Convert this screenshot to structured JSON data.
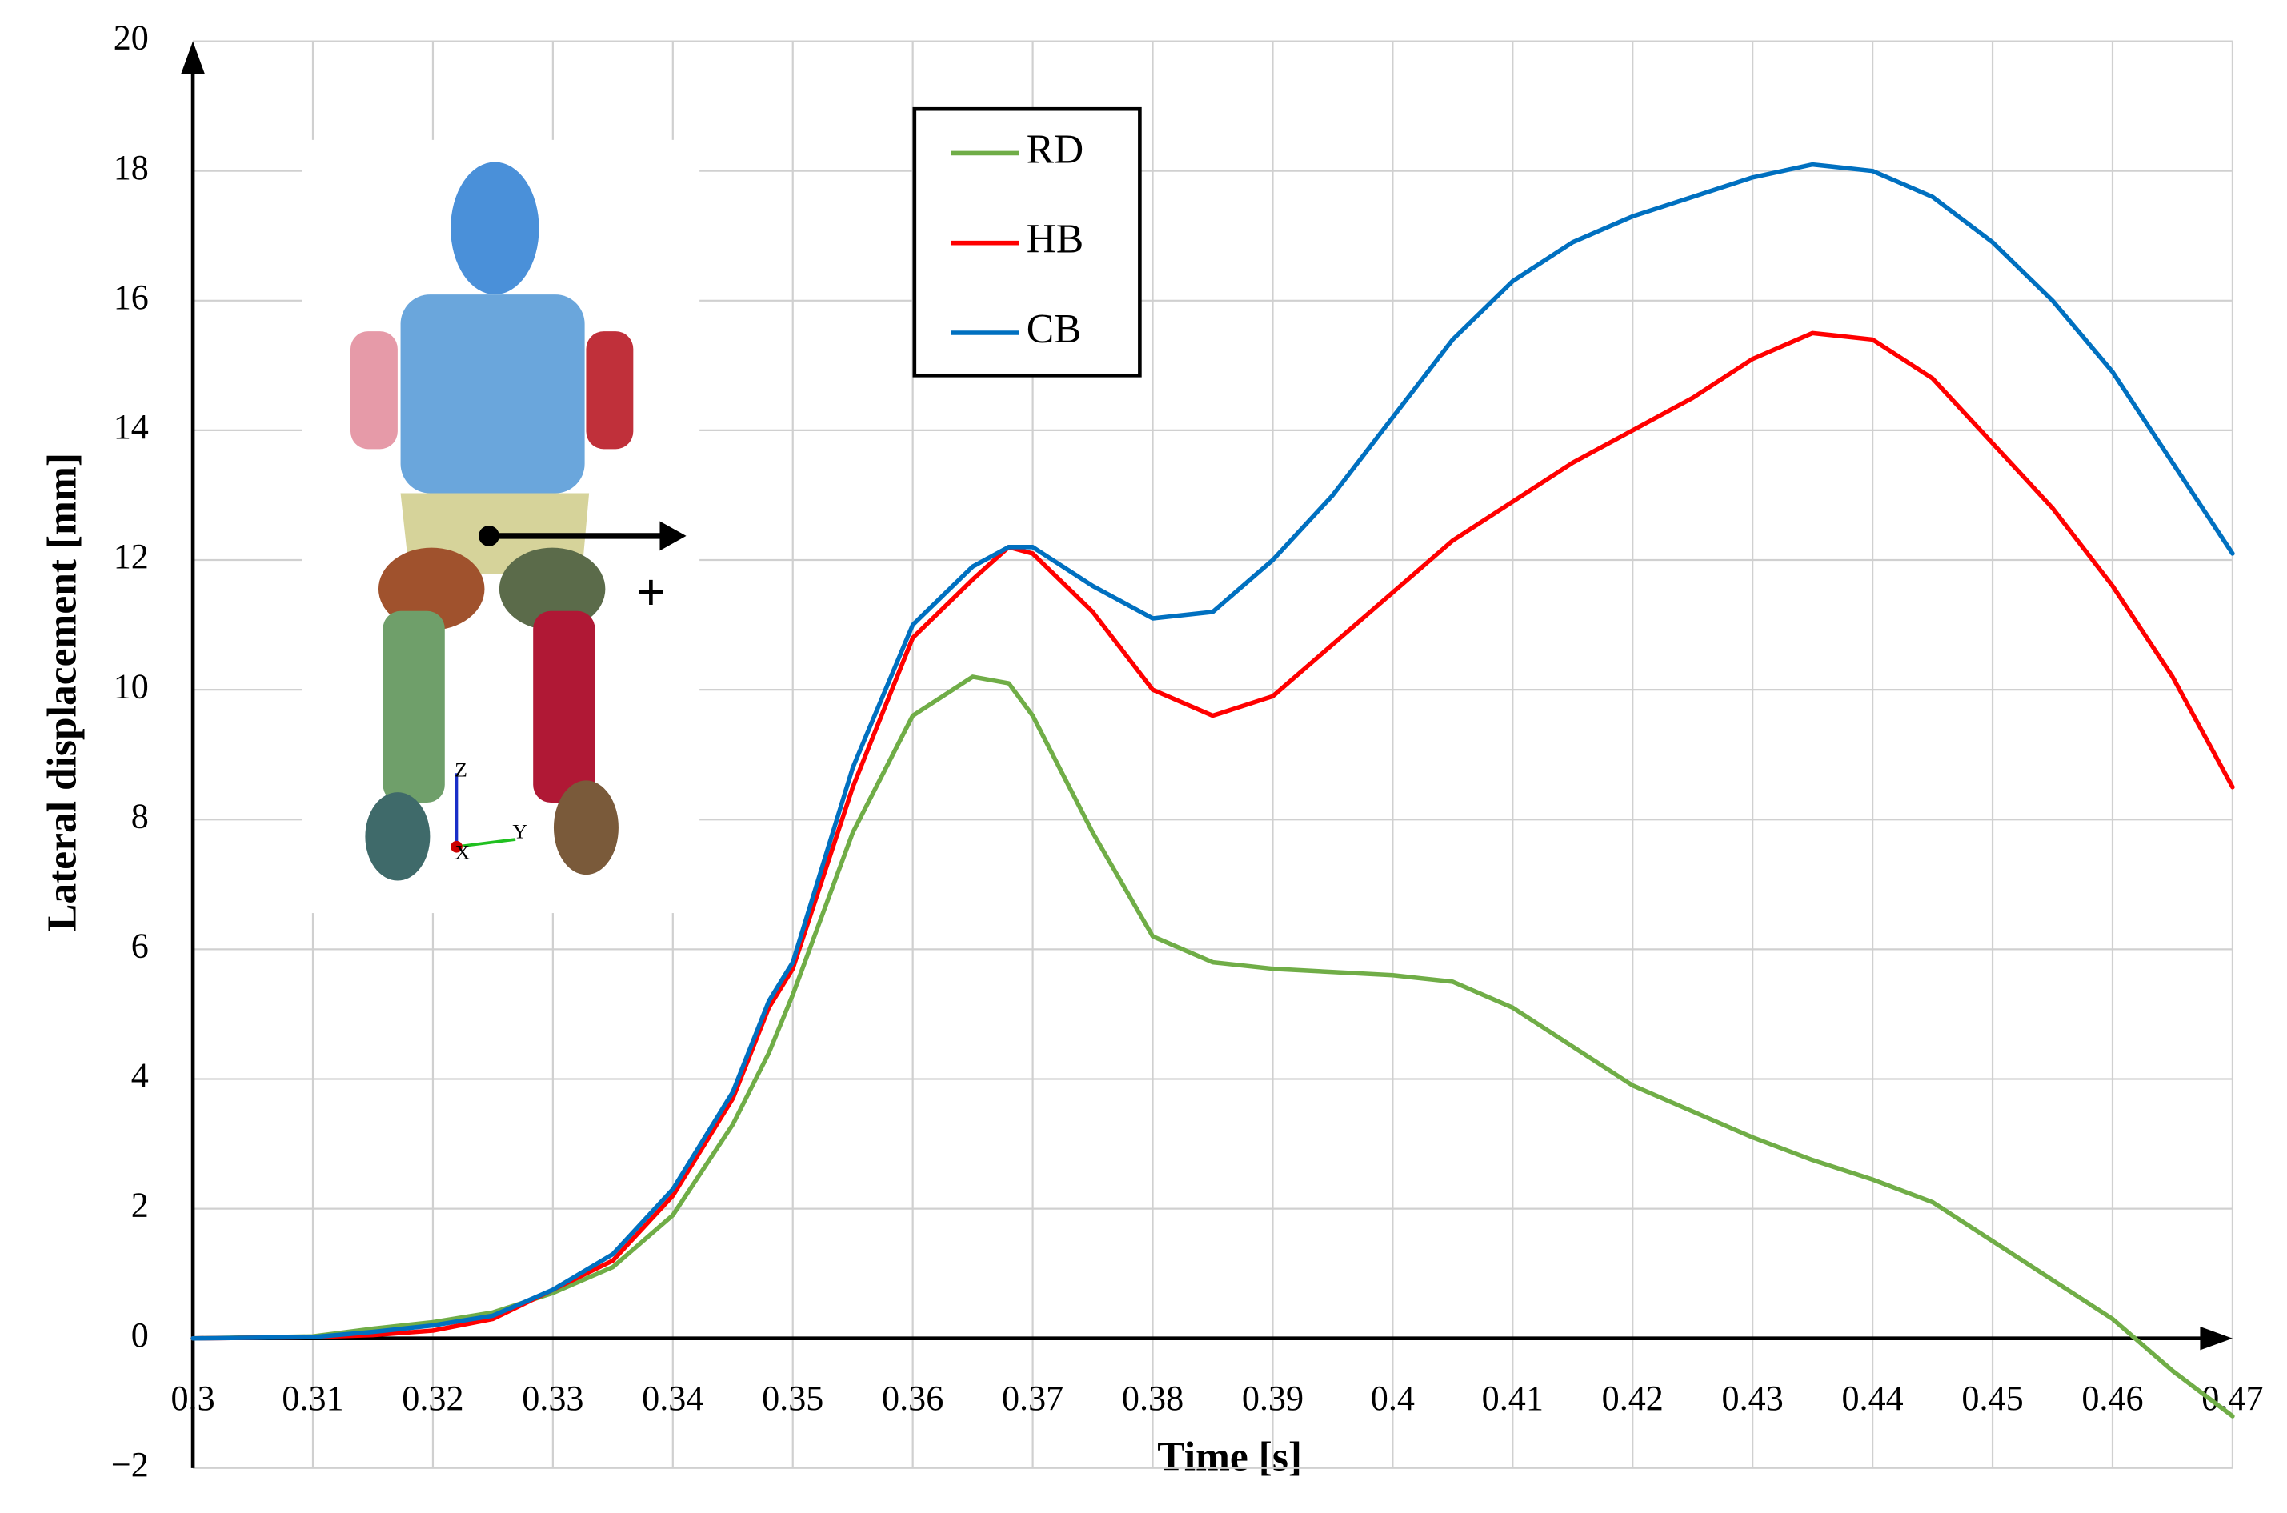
{
  "chart_data": {
    "type": "line",
    "x_label": "Time [s]",
    "y_label": "Lateral displacement [mm]",
    "x": [
      0.3,
      0.31,
      0.315,
      0.32,
      0.325,
      0.33,
      0.335,
      0.34,
      0.345,
      0.348,
      0.35,
      0.355,
      0.36,
      0.365,
      0.368,
      0.37,
      0.375,
      0.38,
      0.385,
      0.39,
      0.395,
      0.4,
      0.405,
      0.41,
      0.415,
      0.42,
      0.425,
      0.43,
      0.435,
      0.44,
      0.445,
      0.45,
      0.455,
      0.46,
      0.465,
      0.47
    ],
    "series": [
      {
        "name": "RD",
        "color": "#70ad47",
        "values": [
          0,
          0.03,
          0.15,
          0.25,
          0.4,
          0.7,
          1.1,
          1.9,
          3.3,
          4.4,
          5.3,
          7.8,
          9.6,
          10.2,
          10.1,
          9.6,
          7.8,
          6.2,
          5.8,
          5.7,
          5.65,
          5.6,
          5.5,
          5.1,
          4.5,
          3.9,
          3.5,
          3.1,
          2.75,
          2.45,
          2.1,
          1.5,
          0.9,
          0.3,
          -0.5,
          -1.2
        ]
      },
      {
        "name": "HB",
        "color": "#ff0000",
        "values": [
          0,
          0.02,
          0.05,
          0.12,
          0.3,
          0.75,
          1.2,
          2.2,
          3.7,
          5.1,
          5.7,
          8.5,
          10.8,
          11.7,
          12.2,
          12.1,
          11.2,
          10.0,
          9.6,
          9.9,
          10.7,
          11.5,
          12.3,
          12.9,
          13.5,
          14.0,
          14.5,
          15.1,
          15.5,
          15.4,
          14.8,
          13.8,
          12.8,
          11.6,
          10.2,
          8.5
        ]
      },
      {
        "name": "CB",
        "color": "#0070c0",
        "values": [
          0,
          0.02,
          0.1,
          0.2,
          0.35,
          0.75,
          1.3,
          2.3,
          3.8,
          5.2,
          5.8,
          8.8,
          11.0,
          11.9,
          12.2,
          12.2,
          11.6,
          11.1,
          11.2,
          12.0,
          13.0,
          14.2,
          15.4,
          16.3,
          16.9,
          17.3,
          17.6,
          17.9,
          18.1,
          18.0,
          17.6,
          16.9,
          16.0,
          14.9,
          13.5,
          12.1
        ]
      }
    ],
    "xlim": [
      0.3,
      0.47
    ],
    "xticks": [
      0.3,
      0.31,
      0.32,
      0.33,
      0.34,
      0.35,
      0.36,
      0.37,
      0.38,
      0.39,
      0.4,
      0.41,
      0.42,
      0.43,
      0.44,
      0.45,
      0.46,
      0.47
    ],
    "ylim": [
      -2,
      20
    ],
    "yticks": [
      {
        "value": -2,
        "label": "−2"
      },
      0,
      2,
      4,
      6,
      8,
      10,
      12,
      14,
      16,
      18,
      20
    ],
    "grid": true,
    "inset_labels": [
      "+",
      "Z",
      "Y",
      "X"
    ]
  }
}
